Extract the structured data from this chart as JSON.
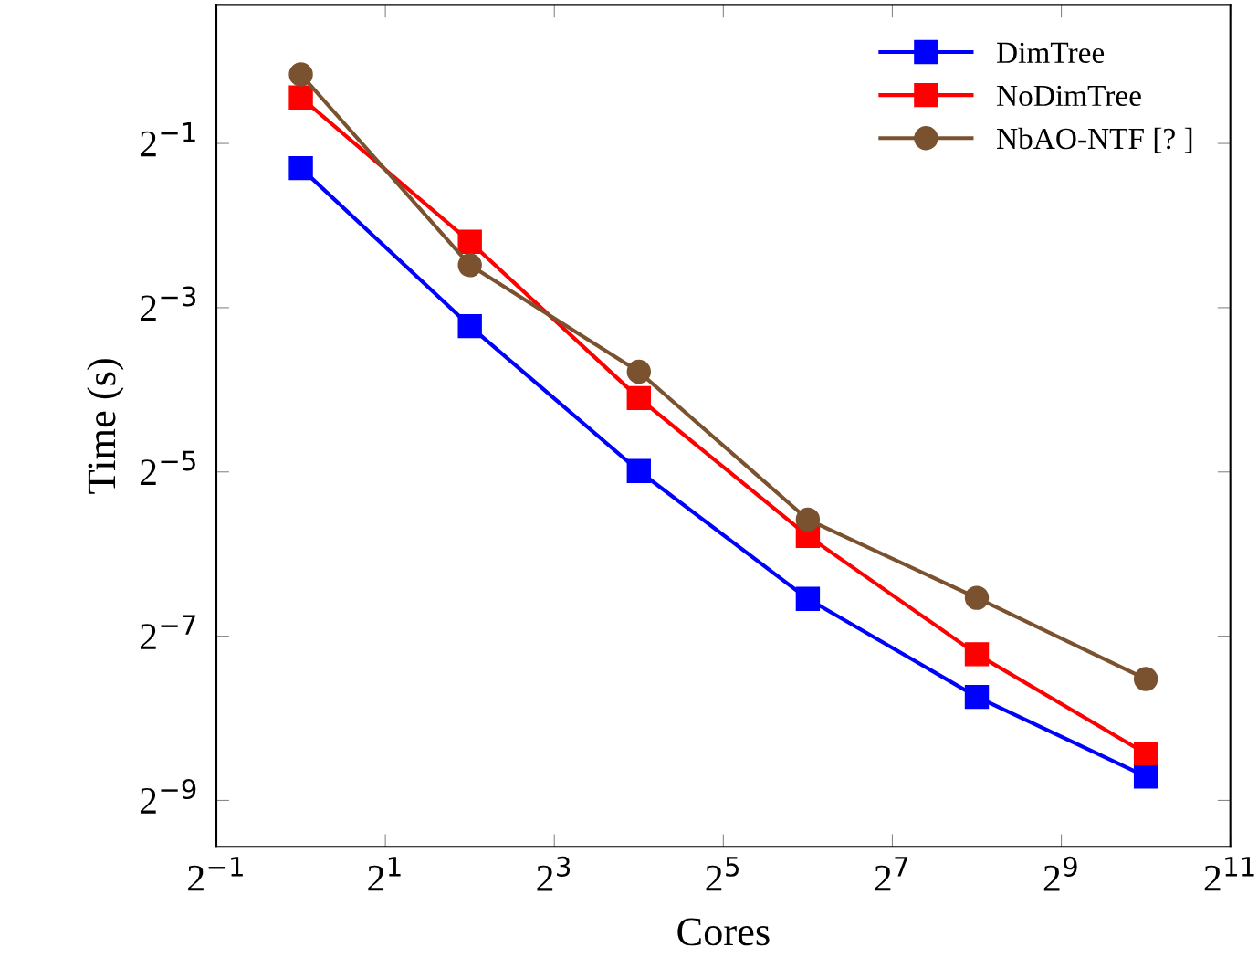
{
  "chart_data": {
    "type": "line",
    "xlabel": "Cores",
    "ylabel": "Time (s)",
    "log": "xy",
    "legend": "top right",
    "grid": false,
    "x": [
      1,
      4,
      16,
      64,
      256,
      1024
    ],
    "xlim": [
      0.5,
      2048
    ],
    "xticks": [
      {
        "value": 0.5,
        "label": "2$^{−1}$"
      },
      {
        "value": 2,
        "label": "2$^{1}$"
      },
      {
        "value": 8,
        "label": "2$^{3}$"
      },
      {
        "value": 32,
        "label": "2$^{5}$"
      },
      {
        "value": 128,
        "label": "2$^{7}$"
      },
      {
        "value": 512,
        "label": "2$^{9}$"
      },
      {
        "value": 2048,
        "label": "2$^{11}$"
      }
    ],
    "ylim": [
      0.00132,
      1.61
    ],
    "yticks": [
      {
        "value": 0.5,
        "label": "2$^{−1}$"
      },
      {
        "value": 0.125,
        "label": "2$^{−3}$"
      },
      {
        "value": 0.03125,
        "label": "2$^{−5}$"
      },
      {
        "value": 0.0078125,
        "label": "2$^{−7}$"
      },
      {
        "value": 0.001953125,
        "label": "2$^{−9}$"
      }
    ],
    "series": [
      {
        "name": "DimTree",
        "color": "#0000ff",
        "marker": "square",
        "values": [
          0.406,
          0.107,
          0.0315,
          0.0107,
          0.00468,
          0.00239
        ]
      },
      {
        "name": "NoDimTree",
        "color": "#ff0000",
        "marker": "square",
        "values": [
          0.737,
          0.218,
          0.0583,
          0.0182,
          0.00671,
          0.0029
        ]
      },
      {
        "name": "NbAO-NTF [? ]",
        "color": "#7a5230",
        "marker": "circle",
        "values": [
          0.895,
          0.179,
          0.0728,
          0.0209,
          0.0108,
          0.00544
        ]
      }
    ]
  }
}
